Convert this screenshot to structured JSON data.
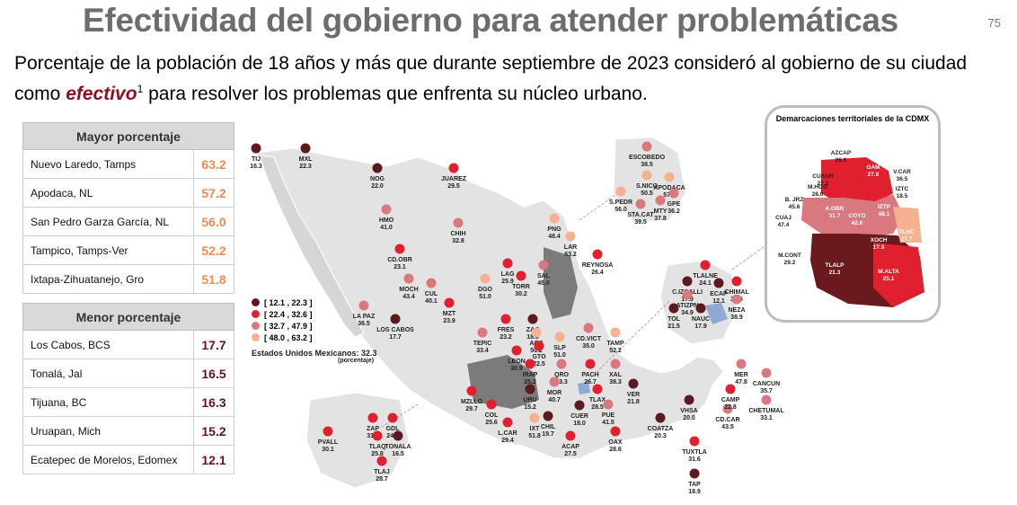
{
  "header": {
    "title": "Efectividad del gobierno para atender problemáticas",
    "page_number": "75",
    "subtitle_pre": "Porcentaje de la población de 18 años y más que durante septiembre de 2023 consideró al gobierno de su ciudad como ",
    "subtitle_highlight": "efectivo",
    "subtitle_sup": "1",
    "subtitle_post": " para resolver los problemas que enfrenta su núcleo urbano."
  },
  "top_table": {
    "heading": "Mayor porcentaje",
    "rows": [
      {
        "name": "Nuevo Laredo, Tamps",
        "value": "63.2"
      },
      {
        "name": "Apodaca, NL",
        "value": "57.2"
      },
      {
        "name": "San Pedro Garza García, NL",
        "value": "56.0"
      },
      {
        "name": "Tampico, Tamps-Ver",
        "value": "52.2"
      },
      {
        "name": "Ixtapa-Zihuatanejo, Gro",
        "value": "51.8"
      }
    ]
  },
  "bottom_table": {
    "heading": "Menor porcentaje",
    "rows": [
      {
        "name": "Los Cabos, BCS",
        "value": "17.7"
      },
      {
        "name": "Tonalá, Jal",
        "value": "16.5"
      },
      {
        "name": "Tijuana, BC",
        "value": "16.3"
      },
      {
        "name": "Uruapan, Mich",
        "value": "15.2"
      },
      {
        "name": "Ecatepec de Morelos, Edomex",
        "value": "12.1"
      }
    ]
  },
  "legend": {
    "items": [
      {
        "label": "[ 12.1 , 22.3 ]",
        "color": "#5c1a1e"
      },
      {
        "label": "[ 22.4 , 32.6 ]",
        "color": "#e0202f"
      },
      {
        "label": "[ 32.7 , 47.9 ]",
        "color": "#d9787f"
      },
      {
        "label": "[ 48.0 , 63.2 ]",
        "color": "#f5b190"
      }
    ],
    "national_label": "Estados Unidos Mexicanos:",
    "national_value": "32.3",
    "national_unit": "(porcentaje)"
  },
  "colors": {
    "c1": "#5c1a1e",
    "c2": "#e0202f",
    "c3": "#d9787f",
    "c4": "#f5b190",
    "land": "#e3e3e3",
    "state": "#7b7b7b",
    "title": "#6d6d6d",
    "accent": "#8b1021"
  },
  "cities": [
    {
      "code": "TIJ",
      "value": "16.3",
      "cls": 1
    },
    {
      "code": "MXL",
      "value": "22.3",
      "cls": 1
    },
    {
      "code": "NOG",
      "value": "22.0",
      "cls": 1
    },
    {
      "code": "JUAREZ",
      "value": "29.5",
      "cls": 2
    },
    {
      "code": "HMO",
      "value": "41.0",
      "cls": 3
    },
    {
      "code": "CHIH",
      "value": "32.8",
      "cls": 3
    },
    {
      "code": "CD.OBR",
      "value": "23.1",
      "cls": 2
    },
    {
      "code": "MOCH",
      "value": "43.4",
      "cls": 3
    },
    {
      "code": "LA PAZ",
      "value": "36.5",
      "cls": 3
    },
    {
      "code": "LOS CABOS",
      "value": "17.7",
      "cls": 1
    },
    {
      "code": "CUL",
      "value": "40.1",
      "cls": 3
    },
    {
      "code": "MZT",
      "value": "23.9",
      "cls": 2
    },
    {
      "code": "DGO",
      "value": "51.0",
      "cls": 4
    },
    {
      "code": "LAG",
      "value": "25.9",
      "cls": 2
    },
    {
      "code": "TORR",
      "value": "30.2",
      "cls": 2
    },
    {
      "code": "SAL",
      "value": "45.0",
      "cls": 3
    },
    {
      "code": "PNG",
      "value": "48.4",
      "cls": 4
    },
    {
      "code": "LAR",
      "value": "63.2",
      "cls": 4
    },
    {
      "code": "REYNOSA",
      "value": "26.4",
      "cls": 2
    },
    {
      "code": "ESCOBEDO",
      "value": "38.5",
      "cls": 3
    },
    {
      "code": "S.NICO",
      "value": "50.5",
      "cls": 4
    },
    {
      "code": "APODACA",
      "value": "57.2",
      "cls": 4
    },
    {
      "code": "S.PEDR",
      "value": "56.0",
      "cls": 4
    },
    {
      "code": "GPE",
      "value": "36.2",
      "cls": 3
    },
    {
      "code": "STA.CAT",
      "value": "39.5",
      "cls": 3
    },
    {
      "code": "MTY",
      "value": "37.8",
      "cls": 3
    },
    {
      "code": "FRES",
      "value": "23.2",
      "cls": 2
    },
    {
      "code": "ZAC",
      "value": "18.0",
      "cls": 1
    },
    {
      "code": "TEPIC",
      "value": "33.4",
      "cls": 3
    },
    {
      "code": "AGS",
      "value": "50.2",
      "cls": 4
    },
    {
      "code": "SLP",
      "value": "51.0",
      "cls": 4
    },
    {
      "code": "CD.VICT",
      "value": "35.0",
      "cls": 3
    },
    {
      "code": "TAMP",
      "value": "52.2",
      "cls": 4
    },
    {
      "code": "LEON",
      "value": "30.9",
      "cls": 2
    },
    {
      "code": "GTO",
      "value": "22.5",
      "cls": 2
    },
    {
      "code": "IRAP",
      "value": "25.2",
      "cls": 2
    },
    {
      "code": "QRO",
      "value": "43.3",
      "cls": 3
    },
    {
      "code": "PACH",
      "value": "26.7",
      "cls": 2
    },
    {
      "code": "XAL",
      "value": "38.3",
      "cls": 3
    },
    {
      "code": "MOR",
      "value": "40.7",
      "cls": 3
    },
    {
      "code": "TLAX",
      "value": "28.5",
      "cls": 2
    },
    {
      "code": "VER",
      "value": "21.8",
      "cls": 1
    },
    {
      "code": "MZLLO",
      "value": "29.7",
      "cls": 2
    },
    {
      "code": "COL",
      "value": "25.6",
      "cls": 2
    },
    {
      "code": "URU",
      "value": "15.2",
      "cls": 1
    },
    {
      "code": "CUER",
      "value": "18.0",
      "cls": 1
    },
    {
      "code": "PUE",
      "value": "41.5",
      "cls": 3
    },
    {
      "code": "CHIL",
      "value": "19.7",
      "cls": 1
    },
    {
      "code": "L.CAR",
      "value": "29.4",
      "cls": 2
    },
    {
      "code": "IXT",
      "value": "51.8",
      "cls": 4
    },
    {
      "code": "ACAP",
      "value": "27.5",
      "cls": 2
    },
    {
      "code": "OAX",
      "value": "28.6",
      "cls": 2
    },
    {
      "code": "COATZA",
      "value": "20.3",
      "cls": 1
    },
    {
      "code": "VHSA",
      "value": "20.0",
      "cls": 1
    },
    {
      "code": "TUXTLA",
      "value": "31.6",
      "cls": 2
    },
    {
      "code": "TAP",
      "value": "18.9",
      "cls": 1
    },
    {
      "code": "CD.CAR",
      "value": "43.5",
      "cls": 3
    },
    {
      "code": "CAMP",
      "value": "22.8",
      "cls": 2
    },
    {
      "code": "MER",
      "value": "47.8",
      "cls": 3
    },
    {
      "code": "CANCUN",
      "value": "35.7",
      "cls": 3
    },
    {
      "code": "CHETUMAL",
      "value": "33.1",
      "cls": 3
    },
    {
      "code": "PVALL",
      "value": "30.1",
      "cls": 2
    },
    {
      "code": "ZAP",
      "value": "31.8",
      "cls": 2
    },
    {
      "code": "GDL",
      "value": "24.8",
      "cls": 2
    },
    {
      "code": "TLAQ",
      "value": "25.8",
      "cls": 2
    },
    {
      "code": "TONALA",
      "value": "16.5",
      "cls": 1
    },
    {
      "code": "TLAJ",
      "value": "28.7",
      "cls": 2
    },
    {
      "code": "TLALNE",
      "value": "24.1",
      "cls": 2
    },
    {
      "code": "C.IZCALLI",
      "value": "17.9",
      "cls": 1
    },
    {
      "code": "ATIZPN",
      "value": "34.9",
      "cls": 3
    },
    {
      "code": "ECAP",
      "value": "12.1",
      "cls": 1
    },
    {
      "code": "CHIMAL",
      "value": "22.5",
      "cls": 2
    },
    {
      "code": "NEZA",
      "value": "38.9",
      "cls": 3
    },
    {
      "code": "TOL",
      "value": "21.5",
      "cls": 1
    },
    {
      "code": "NAUC",
      "value": "17.9",
      "cls": 1
    }
  ],
  "inset": {
    "title": "Demarcaciones territoriales de la CDMX",
    "areas": [
      {
        "code": "AZCAP",
        "value": "26.6"
      },
      {
        "code": "GAM",
        "value": "27.8"
      },
      {
        "code": "CUAUH",
        "value": "27.2"
      },
      {
        "code": "V.CAR",
        "value": "36.5"
      },
      {
        "code": "M.HGO",
        "value": "28.0"
      },
      {
        "code": "IZTC",
        "value": "18.5"
      },
      {
        "code": "B. JRZ",
        "value": "45.6"
      },
      {
        "code": "IZTP",
        "value": "48.1"
      },
      {
        "code": "CUAJ",
        "value": "47.4"
      },
      {
        "code": "A.OBR",
        "value": "31.7"
      },
      {
        "code": "COYO",
        "value": "42.6"
      },
      {
        "code": "TLHC",
        "value": "27.7"
      },
      {
        "code": "XOCH",
        "value": "17.9"
      },
      {
        "code": "M.CONT",
        "value": "29.2"
      },
      {
        "code": "TLALP",
        "value": "21.3"
      },
      {
        "code": "M.ALTA",
        "value": "25.1"
      }
    ]
  }
}
